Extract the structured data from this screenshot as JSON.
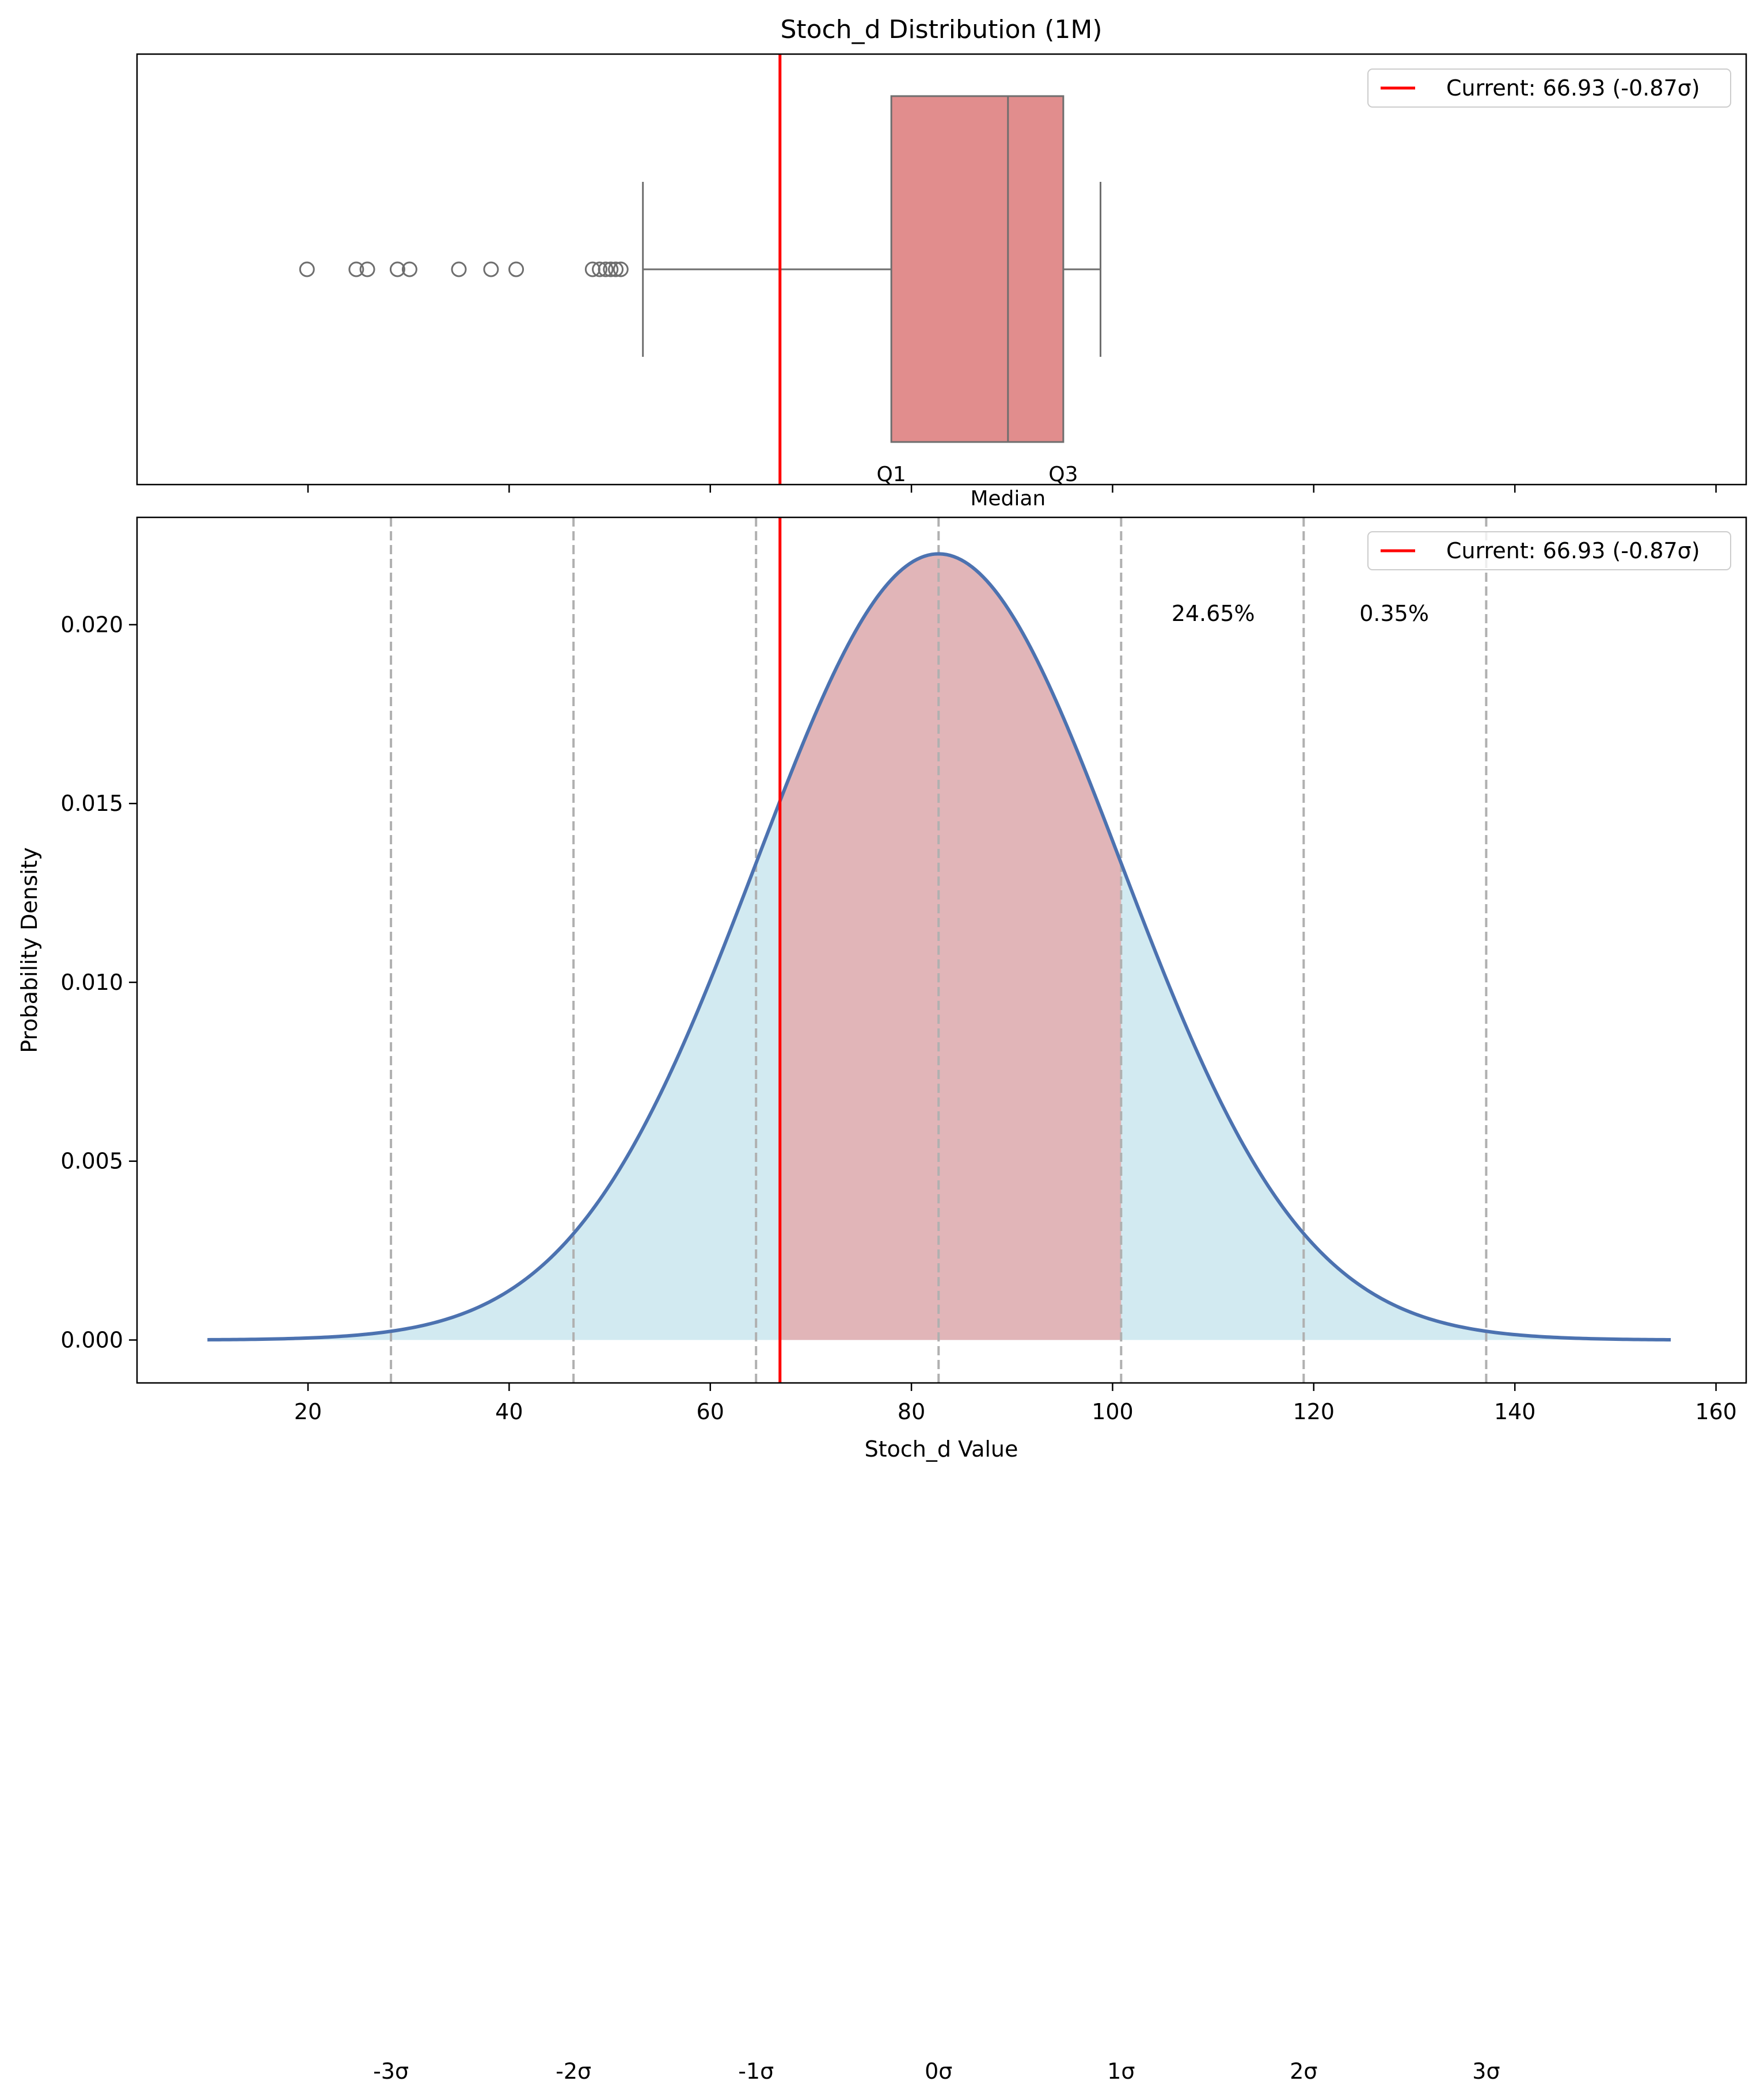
{
  "chart_data": {
    "title": "Stoch_d Distribution (1M)",
    "type": "box+density",
    "x_range": [
      3,
      163
    ],
    "x_ticks": [
      20,
      40,
      60,
      80,
      100,
      120,
      140,
      160
    ],
    "xlabel": "Stoch_d Value",
    "ylabel": "Probability Density",
    "y_range": [
      -0.0012,
      0.023
    ],
    "y_ticks": [
      0.0,
      0.005,
      0.01,
      0.015,
      0.02
    ],
    "y_tick_labels": [
      "0.000",
      "0.005",
      "0.010",
      "0.015",
      "0.020"
    ],
    "current": {
      "value": 66.93,
      "legend_label": "Current: 66.93 (-0.87σ)",
      "color": "#ff0000"
    },
    "boxplot": {
      "whisker_low": 53.3,
      "q1": 78.0,
      "median": 89.6,
      "q3": 95.1,
      "whisker_high": 98.8,
      "outliers": [
        19.9,
        24.8,
        25.9,
        28.9,
        30.1,
        35.0,
        38.2,
        40.7,
        48.3,
        49.0,
        49.6,
        50.1,
        50.6,
        51.1
      ],
      "box_color": "#e18d8d",
      "line_color": "#6e6e6e",
      "labels": {
        "q1": "Q1",
        "median": "Median",
        "q3": "Q3"
      }
    },
    "density": {
      "mean": 82.7,
      "std": 18.15,
      "x_min": 10,
      "x_max": 155.5,
      "line_color": "#4c72b0",
      "tail_fill": "#add8e6",
      "center_fill": "#f08080"
    },
    "sigma_lines": [
      {
        "value": 28.25,
        "label": "-3σ"
      },
      {
        "value": 46.4,
        "label": "-2σ"
      },
      {
        "value": 64.55,
        "label": "-1σ"
      },
      {
        "value": 82.7,
        "label": "0σ"
      },
      {
        "value": 100.85,
        "label": "1σ"
      },
      {
        "value": 119.0,
        "label": "2σ"
      },
      {
        "value": 137.15,
        "label": "3σ"
      }
    ],
    "annotations": [
      {
        "text": "24.65%",
        "x": 110,
        "y": 0.0201
      },
      {
        "text": "0.35%",
        "x": 128,
        "y": 0.0201
      }
    ]
  }
}
